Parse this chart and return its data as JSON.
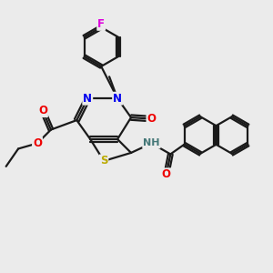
{
  "background_color": "#ebebeb",
  "bond_color": "#1a1a1a",
  "bond_width": 1.6,
  "atom_colors": {
    "N": "#0000ee",
    "O": "#ee0000",
    "S": "#bbaa00",
    "F": "#dd00dd",
    "H": "#447777",
    "C": "#1a1a1a"
  },
  "font_size": 8.5,
  "fig_width": 3.0,
  "fig_height": 3.0,
  "dpi": 100
}
